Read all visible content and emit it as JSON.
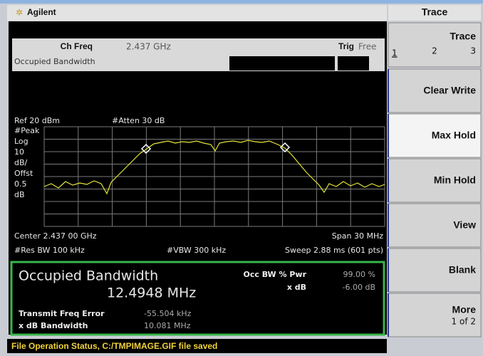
{
  "header": {
    "brand": "Agilent",
    "menu_title": "Trace"
  },
  "top_info": {
    "ch_freq_label": "Ch Freq",
    "ch_freq_value": "2.437 GHz",
    "trig_label": "Trig",
    "trig_value": "Free",
    "mode": "Occupied Bandwidth"
  },
  "graph": {
    "ref": "Ref 20 dBm",
    "atten": "#Atten 30 dB",
    "scale_labels": [
      "#Peak",
      "Log",
      "10",
      "dB/",
      "Offst",
      "0.5",
      "dB"
    ],
    "center": "Center 2.437 00 GHz",
    "span": "Span 30 MHz",
    "res_bw": "#Res BW 100 kHz",
    "vbw": "#VBW 300 kHz",
    "sweep": "Sweep 2.88 ms (601 pts)"
  },
  "results": {
    "title": "Occupied Bandwidth",
    "value": "12.4948 MHz",
    "pwr_label": "Occ BW % Pwr",
    "pwr_value": "99.00 %",
    "xdb_label": "x dB",
    "xdb_value": "-6.00 dB",
    "freq_err_label": "Transmit Freq Error",
    "freq_err_value": "-55.504 kHz",
    "xdb_bw_label": "x dB Bandwidth",
    "xdb_bw_value": "10.081 MHz"
  },
  "softkeys": {
    "trace": "Trace",
    "trace_numbers": [
      "1",
      "2",
      "3"
    ],
    "keys": [
      "Clear Write",
      "Max Hold",
      "Min Hold",
      "View",
      "Blank",
      "More"
    ],
    "more_sub": "1 of 2"
  },
  "status": "File Operation Status, C:/TMPIMAGE.GIF file saved"
}
